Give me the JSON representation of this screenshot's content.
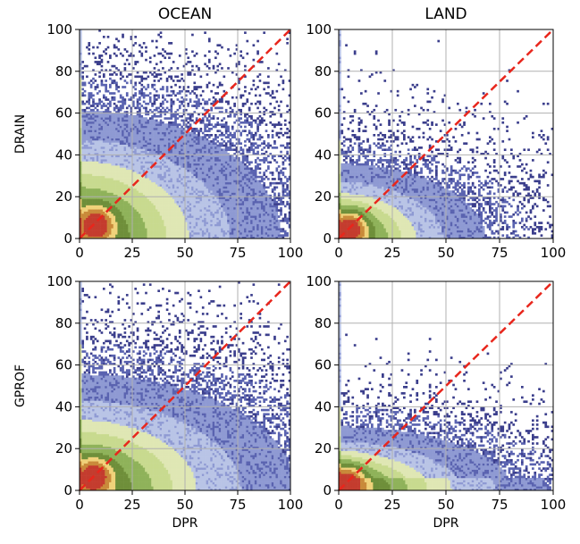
{
  "chart_data": [
    {
      "type": "heatmap",
      "title": "OCEAN",
      "xlabel": "",
      "ylabel": "DRAIN",
      "xlim": [
        0,
        100
      ],
      "ylim": [
        0,
        100
      ],
      "x_ticks": [
        "0",
        "25",
        "50",
        "75",
        "100"
      ],
      "y_ticks": [
        "0",
        "20",
        "40",
        "60",
        "80",
        "100"
      ],
      "grid": true,
      "reference_line": {
        "x": [
          0,
          100
        ],
        "y": [
          0,
          100
        ],
        "color": "#e8261c",
        "style": "dashed"
      },
      "density_model": {
        "core_x": 8,
        "core_y": 7,
        "spread_x": 28,
        "spread_y": 22,
        "tail": 0.85
      }
    },
    {
      "type": "heatmap",
      "title": "LAND",
      "xlabel": "",
      "ylabel": "",
      "xlim": [
        0,
        100
      ],
      "ylim": [
        0,
        100
      ],
      "x_ticks": [
        "0",
        "25",
        "50",
        "75",
        "100"
      ],
      "y_ticks": [
        "0",
        "20",
        "40",
        "60",
        "80",
        "100"
      ],
      "grid": true,
      "reference_line": {
        "x": [
          0,
          100
        ],
        "y": [
          0,
          100
        ],
        "color": "#e8261c",
        "style": "dashed"
      },
      "density_model": {
        "core_x": 5,
        "core_y": 5,
        "spread_x": 22,
        "spread_y": 14,
        "tail": 0.7
      }
    },
    {
      "type": "heatmap",
      "title": "",
      "xlabel": "DPR",
      "ylabel": "GPROF",
      "xlim": [
        0,
        100
      ],
      "ylim": [
        0,
        100
      ],
      "x_ticks": [
        "0",
        "25",
        "50",
        "75",
        "100"
      ],
      "y_ticks": [
        "0",
        "20",
        "40",
        "60",
        "80",
        "100"
      ],
      "grid": true,
      "reference_line": {
        "x": [
          0,
          100
        ],
        "y": [
          0,
          100
        ],
        "color": "#e8261c",
        "style": "dashed"
      },
      "density_model": {
        "core_x": 7,
        "core_y": 7,
        "spread_x": 30,
        "spread_y": 20,
        "tail": 0.85
      }
    },
    {
      "type": "heatmap",
      "title": "",
      "xlabel": "DPR",
      "ylabel": "",
      "xlim": [
        0,
        100
      ],
      "ylim": [
        0,
        100
      ],
      "x_ticks": [
        "0",
        "25",
        "50",
        "75",
        "100"
      ],
      "y_ticks": [
        "0",
        "20",
        "40",
        "60",
        "80",
        "100"
      ],
      "grid": true,
      "reference_line": {
        "x": [
          0,
          100
        ],
        "y": [
          0,
          100
        ],
        "color": "#e8261c",
        "style": "dashed"
      },
      "density_model": {
        "core_x": 4,
        "core_y": 4,
        "spread_x": 26,
        "spread_y": 12,
        "tail": 0.7
      }
    }
  ],
  "colormap": [
    "#3b3e8c",
    "#5a63b0",
    "#8f9ad3",
    "#b9c4e6",
    "#dfe7b4",
    "#c8da8f",
    "#8fb25a",
    "#6f8f3a",
    "#f0d27a",
    "#c98a3a",
    "#c43c2e"
  ]
}
